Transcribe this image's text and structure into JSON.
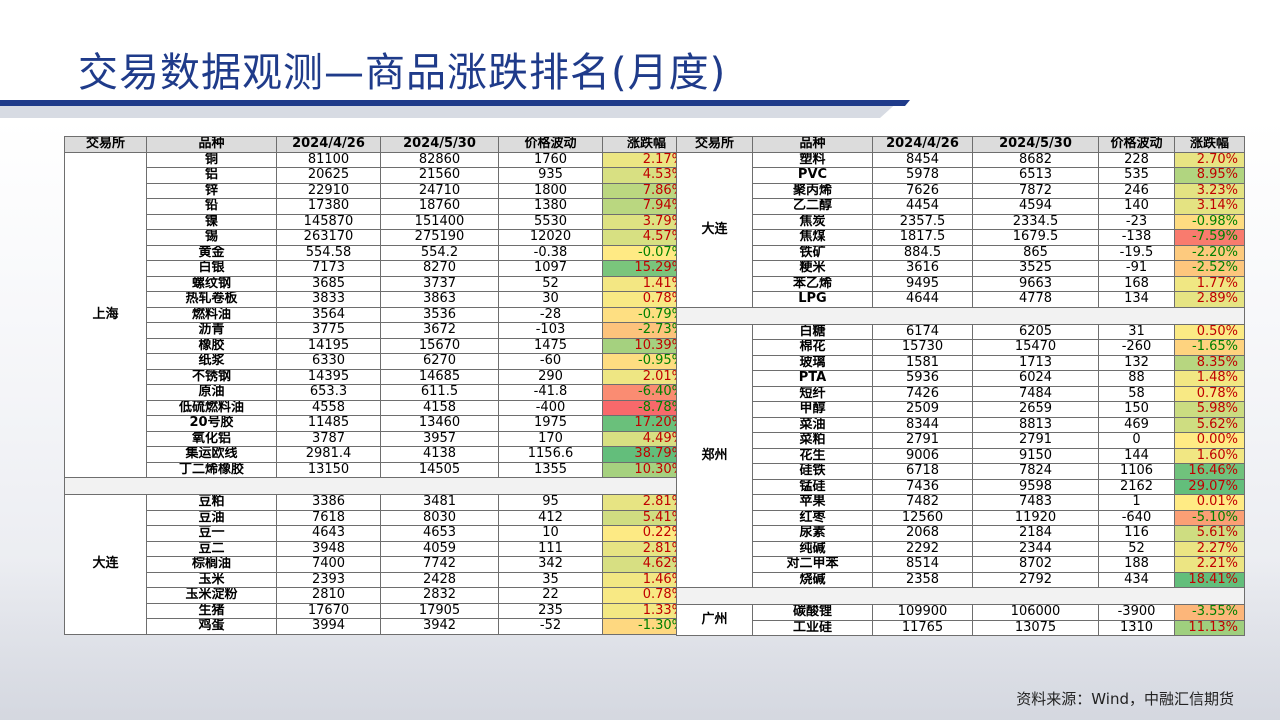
{
  "title": "交易数据观测—商品涨跌排名(月度)",
  "source": "资料来源：Wind，中融汇信期货",
  "headers_left": [
    "交易所",
    "品种",
    "2024/4/26",
    "2024/5/30",
    "价格波动",
    "涨跌幅"
  ],
  "headers_right": [
    "交易所",
    "品种",
    "2024/4/26",
    "2024/5/30",
    "价格波动",
    "涨跌幅"
  ],
  "left_groups": [
    {
      "exchange": "上海",
      "rows": [
        {
          "name": "铜",
          "p1": "81100",
          "p2": "82860",
          "chg": "1760",
          "pct": "2.17%",
          "v": 2.17
        },
        {
          "name": "铝",
          "p1": "20625",
          "p2": "21560",
          "chg": "935",
          "pct": "4.53%",
          "v": 4.53
        },
        {
          "name": "锌",
          "p1": "22910",
          "p2": "24710",
          "chg": "1800",
          "pct": "7.86%",
          "v": 7.86
        },
        {
          "name": "铅",
          "p1": "17380",
          "p2": "18760",
          "chg": "1380",
          "pct": "7.94%",
          "v": 7.94
        },
        {
          "name": "镍",
          "p1": "145870",
          "p2": "151400",
          "chg": "5530",
          "pct": "3.79%",
          "v": 3.79
        },
        {
          "name": "锡",
          "p1": "263170",
          "p2": "275190",
          "chg": "12020",
          "pct": "4.57%",
          "v": 4.57
        },
        {
          "name": "黄金",
          "p1": "554.58",
          "p2": "554.2",
          "chg": "-0.38",
          "pct": "-0.07%",
          "v": -0.07
        },
        {
          "name": "白银",
          "p1": "7173",
          "p2": "8270",
          "chg": "1097",
          "pct": "15.29%",
          "v": 15.29
        },
        {
          "name": "螺纹钢",
          "p1": "3685",
          "p2": "3737",
          "chg": "52",
          "pct": "1.41%",
          "v": 1.41
        },
        {
          "name": "热轧卷板",
          "p1": "3833",
          "p2": "3863",
          "chg": "30",
          "pct": "0.78%",
          "v": 0.78
        },
        {
          "name": "燃料油",
          "p1": "3564",
          "p2": "3536",
          "chg": "-28",
          "pct": "-0.79%",
          "v": -0.79
        },
        {
          "name": "沥青",
          "p1": "3775",
          "p2": "3672",
          "chg": "-103",
          "pct": "-2.73%",
          "v": -2.73
        },
        {
          "name": "橡胶",
          "p1": "14195",
          "p2": "15670",
          "chg": "1475",
          "pct": "10.39%",
          "v": 10.39
        },
        {
          "name": "纸浆",
          "p1": "6330",
          "p2": "6270",
          "chg": "-60",
          "pct": "-0.95%",
          "v": -0.95
        },
        {
          "name": "不锈钢",
          "p1": "14395",
          "p2": "14685",
          "chg": "290",
          "pct": "2.01%",
          "v": 2.01
        },
        {
          "name": "原油",
          "p1": "653.3",
          "p2": "611.5",
          "chg": "-41.8",
          "pct": "-6.40%",
          "v": -6.4
        },
        {
          "name": "低硫燃料油",
          "p1": "4558",
          "p2": "4158",
          "chg": "-400",
          "pct": "-8.78%",
          "v": -8.78
        },
        {
          "name": "20号胶",
          "p1": "11485",
          "p2": "13460",
          "chg": "1975",
          "pct": "17.20%",
          "v": 17.2
        },
        {
          "name": "氧化铝",
          "p1": "3787",
          "p2": "3957",
          "chg": "170",
          "pct": "4.49%",
          "v": 4.49
        },
        {
          "name": "集运欧线",
          "p1": "2981.4",
          "p2": "4138",
          "chg": "1156.6",
          "pct": "38.79%",
          "v": 38.79
        },
        {
          "name": "丁二烯橡胶",
          "p1": "13150",
          "p2": "14505",
          "chg": "1355",
          "pct": "10.30%",
          "v": 10.3
        }
      ]
    },
    {
      "exchange": "大连",
      "rows": [
        {
          "name": "豆粕",
          "p1": "3386",
          "p2": "3481",
          "chg": "95",
          "pct": "2.81%",
          "v": 2.81
        },
        {
          "name": "豆油",
          "p1": "7618",
          "p2": "8030",
          "chg": "412",
          "pct": "5.41%",
          "v": 5.41
        },
        {
          "name": "豆一",
          "p1": "4643",
          "p2": "4653",
          "chg": "10",
          "pct": "0.22%",
          "v": 0.22
        },
        {
          "name": "豆二",
          "p1": "3948",
          "p2": "4059",
          "chg": "111",
          "pct": "2.81%",
          "v": 2.81
        },
        {
          "name": "棕榈油",
          "p1": "7400",
          "p2": "7742",
          "chg": "342",
          "pct": "4.62%",
          "v": 4.62
        },
        {
          "name": "玉米",
          "p1": "2393",
          "p2": "2428",
          "chg": "35",
          "pct": "1.46%",
          "v": 1.46
        },
        {
          "name": "玉米淀粉",
          "p1": "2810",
          "p2": "2832",
          "chg": "22",
          "pct": "0.78%",
          "v": 0.78
        },
        {
          "name": "生猪",
          "p1": "17670",
          "p2": "17905",
          "chg": "235",
          "pct": "1.33%",
          "v": 1.33
        },
        {
          "name": "鸡蛋",
          "p1": "3994",
          "p2": "3942",
          "chg": "-52",
          "pct": "-1.30%",
          "v": -1.3
        }
      ]
    }
  ],
  "right_groups": [
    {
      "exchange": "大连",
      "rows": [
        {
          "name": "塑料",
          "p1": "8454",
          "p2": "8682",
          "chg": "228",
          "pct": "2.70%",
          "v": 2.7
        },
        {
          "name": "PVC",
          "p1": "5978",
          "p2": "6513",
          "chg": "535",
          "pct": "8.95%",
          "v": 8.95
        },
        {
          "name": "聚丙烯",
          "p1": "7626",
          "p2": "7872",
          "chg": "246",
          "pct": "3.23%",
          "v": 3.23
        },
        {
          "name": "乙二醇",
          "p1": "4454",
          "p2": "4594",
          "chg": "140",
          "pct": "3.14%",
          "v": 3.14
        },
        {
          "name": "焦炭",
          "p1": "2357.5",
          "p2": "2334.5",
          "chg": "-23",
          "pct": "-0.98%",
          "v": -0.98
        },
        {
          "name": "焦煤",
          "p1": "1817.5",
          "p2": "1679.5",
          "chg": "-138",
          "pct": "-7.59%",
          "v": -7.59
        },
        {
          "name": "铁矿",
          "p1": "884.5",
          "p2": "865",
          "chg": "-19.5",
          "pct": "-2.20%",
          "v": -2.2
        },
        {
          "name": "粳米",
          "p1": "3616",
          "p2": "3525",
          "chg": "-91",
          "pct": "-2.52%",
          "v": -2.52
        },
        {
          "name": "苯乙烯",
          "p1": "9495",
          "p2": "9663",
          "chg": "168",
          "pct": "1.77%",
          "v": 1.77
        },
        {
          "name": "LPG",
          "p1": "4644",
          "p2": "4778",
          "chg": "134",
          "pct": "2.89%",
          "v": 2.89
        }
      ]
    },
    {
      "exchange": "郑州",
      "rows": [
        {
          "name": "白糖",
          "p1": "6174",
          "p2": "6205",
          "chg": "31",
          "pct": "0.50%",
          "v": 0.5
        },
        {
          "name": "棉花",
          "p1": "15730",
          "p2": "15470",
          "chg": "-260",
          "pct": "-1.65%",
          "v": -1.65
        },
        {
          "name": "玻璃",
          "p1": "1581",
          "p2": "1713",
          "chg": "132",
          "pct": "8.35%",
          "v": 8.35
        },
        {
          "name": "PTA",
          "p1": "5936",
          "p2": "6024",
          "chg": "88",
          "pct": "1.48%",
          "v": 1.48
        },
        {
          "name": "短纤",
          "p1": "7426",
          "p2": "7484",
          "chg": "58",
          "pct": "0.78%",
          "v": 0.78
        },
        {
          "name": "甲醇",
          "p1": "2509",
          "p2": "2659",
          "chg": "150",
          "pct": "5.98%",
          "v": 5.98
        },
        {
          "name": "菜油",
          "p1": "8344",
          "p2": "8813",
          "chg": "469",
          "pct": "5.62%",
          "v": 5.62
        },
        {
          "name": "菜粕",
          "p1": "2791",
          "p2": "2791",
          "chg": "0",
          "pct": "0.00%",
          "v": 0.0
        },
        {
          "name": "花生",
          "p1": "9006",
          "p2": "9150",
          "chg": "144",
          "pct": "1.60%",
          "v": 1.6
        },
        {
          "name": "硅铁",
          "p1": "6718",
          "p2": "7824",
          "chg": "1106",
          "pct": "16.46%",
          "v": 16.46
        },
        {
          "name": "锰硅",
          "p1": "7436",
          "p2": "9598",
          "chg": "2162",
          "pct": "29.07%",
          "v": 29.07
        },
        {
          "name": "苹果",
          "p1": "7482",
          "p2": "7483",
          "chg": "1",
          "pct": "0.01%",
          "v": 0.01
        },
        {
          "name": "红枣",
          "p1": "12560",
          "p2": "11920",
          "chg": "-640",
          "pct": "-5.10%",
          "v": -5.1
        },
        {
          "name": "尿素",
          "p1": "2068",
          "p2": "2184",
          "chg": "116",
          "pct": "5.61%",
          "v": 5.61
        },
        {
          "name": "纯碱",
          "p1": "2292",
          "p2": "2344",
          "chg": "52",
          "pct": "2.27%",
          "v": 2.27
        },
        {
          "name": "对二甲苯",
          "p1": "8514",
          "p2": "8702",
          "chg": "188",
          "pct": "2.21%",
          "v": 2.21
        },
        {
          "name": "烧碱",
          "p1": "2358",
          "p2": "2792",
          "chg": "434",
          "pct": "18.41%",
          "v": 18.41
        }
      ]
    },
    {
      "exchange": "广州",
      "rows": [
        {
          "name": "碳酸锂",
          "p1": "109900",
          "p2": "106000",
          "chg": "-3900",
          "pct": "-3.55%",
          "v": -3.55
        },
        {
          "name": "工业硅",
          "p1": "11765",
          "p2": "13075",
          "chg": "1310",
          "pct": "11.13%",
          "v": 11.13
        }
      ]
    }
  ],
  "colors": {
    "title": "#1f3b8a",
    "header_bg": "#dcdcdc",
    "positive_text": "#c00000",
    "negative_text": "#008000",
    "neg_strong": "#f8696b",
    "neutral": "#ffeb84",
    "pos_strong": "#63be7b"
  }
}
